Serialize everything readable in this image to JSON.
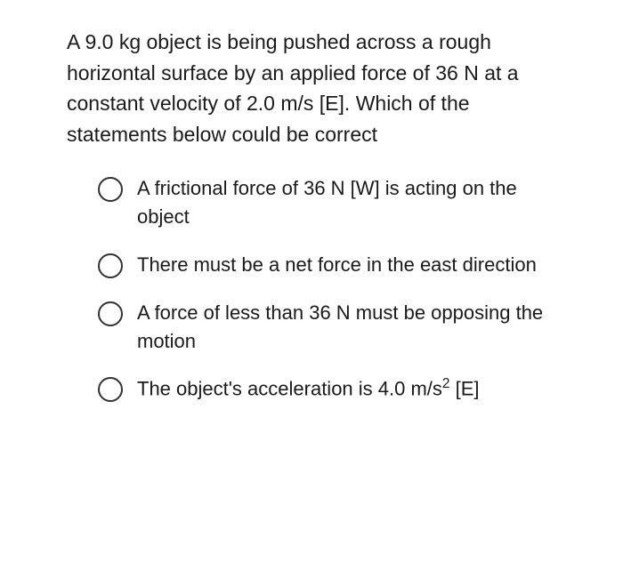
{
  "question": {
    "text": "A 9.0 kg object is being pushed across a rough horizontal surface by an applied force of 36 N at a constant velocity of 2.0 m/s [E]. Which of the statements below could be correct",
    "font_size": 23,
    "color": "#1a1a1a"
  },
  "options": [
    {
      "text": "A frictional force of 36 N [W] is acting on the object",
      "selected": false
    },
    {
      "text": "There must be a net force in the east direction",
      "selected": false
    },
    {
      "text": "A force of less than 36 N must be opposing the motion",
      "selected": false
    },
    {
      "text_html": "The object's acceleration is 4.0 m/s<sup>2</sup> [E]",
      "text": "The object's acceleration is 4.0 m/s² [E]",
      "selected": false
    }
  ],
  "styling": {
    "background_color": "#ffffff",
    "text_color": "#1a1a1a",
    "radio_border_color": "#333333",
    "radio_size": 28,
    "option_font_size": 22
  }
}
